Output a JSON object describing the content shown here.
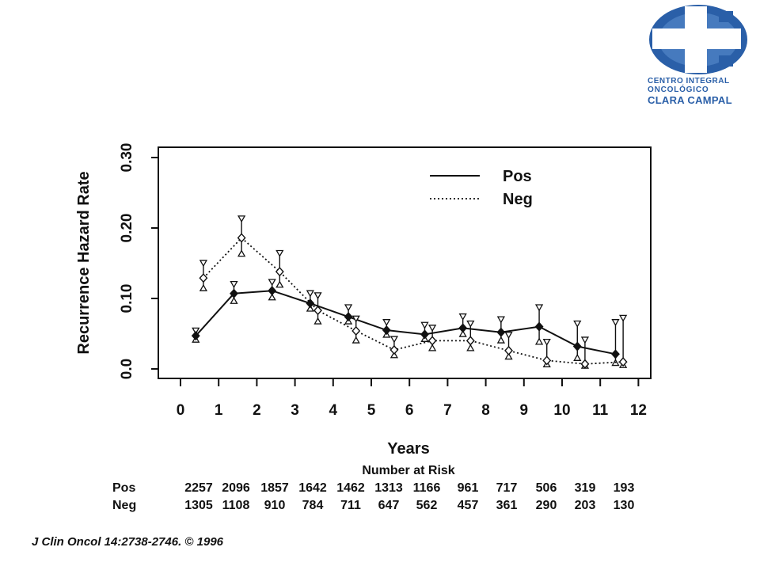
{
  "logo": {
    "icon": "medical-cross-logo-icon",
    "line1": "CENTRO INTEGRAL",
    "line2": "ONCOLÓGICO",
    "line3": "CLARA CAMPAL",
    "color": "#2a5fa8"
  },
  "chart_data": {
    "type": "line",
    "title": "",
    "xlabel": "Years",
    "ylabel": "Recurrence Hazard Rate",
    "xlim": [
      0,
      12
    ],
    "ylim": [
      0,
      0.3
    ],
    "x_ticks": [
      0,
      1,
      2,
      3,
      4,
      5,
      6,
      7,
      8,
      9,
      10,
      11,
      12
    ],
    "x_tick_labels": [
      "0",
      "1",
      "2",
      "3",
      "4",
      "5",
      "6",
      "7",
      "8",
      "9",
      "10",
      "11",
      "12"
    ],
    "y_ticks": [
      0,
      0.1,
      0.2,
      0.3
    ],
    "y_tick_labels": [
      "0.0",
      "0.10",
      "0.20",
      "0.30"
    ],
    "grid": false,
    "legend": "top-right",
    "series": [
      {
        "name": "Pos",
        "style": "solid",
        "marker": "filled-diamond",
        "x": [
          0.4,
          1.4,
          2.4,
          3.4,
          4.4,
          5.4,
          6.4,
          7.4,
          8.4,
          9.4,
          10.4,
          11.4
        ],
        "values": [
          0.047,
          0.107,
          0.111,
          0.093,
          0.074,
          0.055,
          0.049,
          0.058,
          0.052,
          0.06,
          0.032,
          0.021
        ],
        "lower": [
          0.038,
          0.093,
          0.098,
          0.082,
          0.064,
          0.045,
          0.039,
          0.046,
          0.037,
          0.035,
          0.012,
          0.005
        ],
        "upper": [
          0.058,
          0.124,
          0.127,
          0.111,
          0.091,
          0.07,
          0.066,
          0.078,
          0.074,
          0.091,
          0.068,
          0.07
        ]
      },
      {
        "name": "Neg",
        "style": "dotted",
        "marker": "open-diamond",
        "x": [
          0.6,
          1.6,
          2.6,
          3.6,
          4.6,
          5.6,
          6.6,
          7.6,
          8.6,
          9.6,
          10.6,
          11.6
        ],
        "values": [
          0.129,
          0.186,
          0.138,
          0.083,
          0.054,
          0.027,
          0.04,
          0.04,
          0.026,
          0.012,
          0.007,
          0.01
        ],
        "lower": [
          0.111,
          0.16,
          0.116,
          0.064,
          0.037,
          0.016,
          0.026,
          0.026,
          0.014,
          0.003,
          0.001,
          0.002
        ],
        "upper": [
          0.154,
          0.217,
          0.168,
          0.108,
          0.075,
          0.046,
          0.062,
          0.068,
          0.052,
          0.042,
          0.045,
          0.076
        ]
      }
    ],
    "risk_table": {
      "title": "Number at Risk",
      "rows": [
        {
          "label": "Pos",
          "values": [
            "2257",
            "2096",
            "1857",
            "1642",
            "1462",
            "1313",
            "1166",
            "961",
            "717",
            "506",
            "319",
            "193"
          ]
        },
        {
          "label": "Neg",
          "values": [
            "1305",
            "1108",
            "910",
            "784",
            "711",
            "647",
            "562",
            "457",
            "361",
            "290",
            "203",
            "130"
          ]
        }
      ]
    }
  },
  "citation": "J Clin Oncol 14:2738-2746. © 1996"
}
